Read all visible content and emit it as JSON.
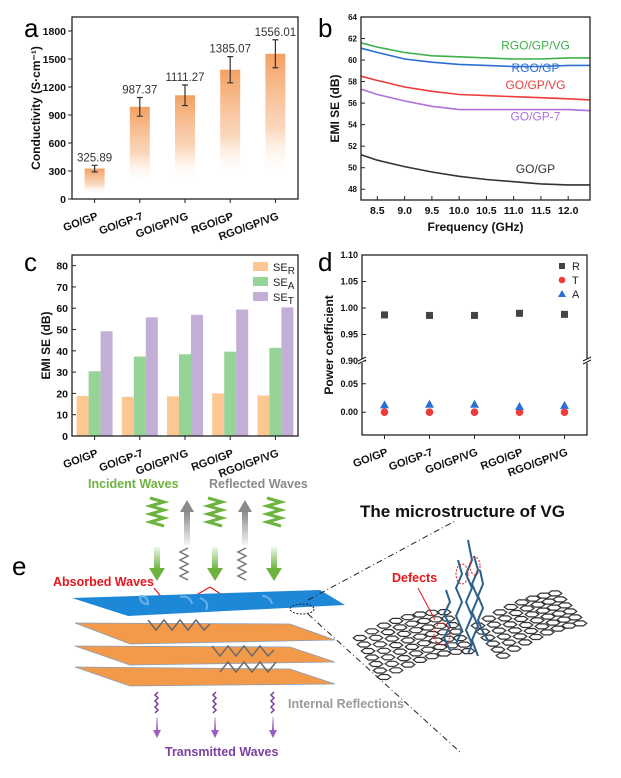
{
  "panels": {
    "a": "a",
    "b": "b",
    "c": "c",
    "d": "d",
    "e": "e"
  },
  "chart_data": [
    {
      "id": "a",
      "type": "bar",
      "title": "",
      "xlabel": "",
      "ylabel": "Conductivity (S·cm⁻¹)",
      "ylim": [
        0,
        1950
      ],
      "yticks": [
        0,
        300,
        600,
        900,
        1200,
        1500,
        1800
      ],
      "categories": [
        "GO/GP",
        "GO/GP-7",
        "GO/GP/VG",
        "RGO/GP",
        "RGO/GP/VG"
      ],
      "values": [
        325.89,
        987.37,
        1111.27,
        1385.07,
        1556.01
      ],
      "errors": [
        35,
        100,
        110,
        140,
        150
      ],
      "data_labels": [
        "325.89",
        "987.37",
        "1111.27",
        "1385.07",
        "1556.01"
      ],
      "color": "#f4a060",
      "grid": false
    },
    {
      "id": "b",
      "type": "line",
      "xlabel": "Frequency (GHz)",
      "ylabel": "EMI SE (dB)",
      "xlim": [
        8.2,
        12.4
      ],
      "ylim": [
        47,
        64
      ],
      "xticks": [
        8.5,
        9.0,
        9.5,
        10.0,
        10.5,
        11.0,
        11.5,
        12.0
      ],
      "xtick_labels": [
        "8.5",
        "9.0",
        "9.5",
        "10.0",
        "10.5",
        "11.0",
        "11.5",
        "12.0"
      ],
      "yticks": [
        48,
        50,
        52,
        54,
        56,
        58,
        60,
        62,
        64
      ],
      "x": [
        8.2,
        8.5,
        9.0,
        9.5,
        10.0,
        10.5,
        11.0,
        11.5,
        12.0,
        12.4
      ],
      "series": [
        {
          "name": "RGO/GP/VG",
          "color": "#3cb04a",
          "values": [
            61.6,
            61.2,
            60.7,
            60.4,
            60.3,
            60.2,
            60.1,
            60.1,
            60.2,
            60.2
          ]
        },
        {
          "name": "RGO/GP",
          "color": "#2a6fd6",
          "values": [
            61.1,
            60.7,
            60.1,
            59.8,
            59.6,
            59.5,
            59.4,
            59.4,
            59.5,
            59.5
          ]
        },
        {
          "name": "GO/GP/VG",
          "color": "#ee3b3b",
          "values": [
            58.5,
            58.1,
            57.5,
            57.1,
            56.8,
            56.7,
            56.6,
            56.5,
            56.4,
            56.3
          ]
        },
        {
          "name": "GO/GP-7",
          "color": "#b070e0",
          "values": [
            57.3,
            56.8,
            56.2,
            55.7,
            55.4,
            55.4,
            55.4,
            55.4,
            55.4,
            55.3
          ]
        },
        {
          "name": "GO/GP",
          "color": "#333333",
          "values": [
            51.2,
            50.7,
            50.1,
            49.6,
            49.2,
            48.9,
            48.7,
            48.5,
            48.4,
            48.4
          ]
        }
      ],
      "grid": false
    },
    {
      "id": "c",
      "type": "bar",
      "xlabel": "",
      "ylabel": "EMI SE (dB)",
      "ylim": [
        0,
        85
      ],
      "yticks": [
        0,
        10,
        20,
        30,
        40,
        50,
        60,
        70,
        80
      ],
      "categories": [
        "GO/GP",
        "GO/GP-7",
        "GO/GP/VG",
        "RGO/GP",
        "RGO/GP/VG"
      ],
      "series": [
        {
          "name": "SE",
          "sub": "R",
          "color": "#fcc790",
          "values": [
            18.8,
            18.4,
            18.6,
            20.0,
            19.0
          ]
        },
        {
          "name": "SE",
          "sub": "A",
          "color": "#95d496",
          "values": [
            30.4,
            37.3,
            38.4,
            39.6,
            41.4
          ]
        },
        {
          "name": "SE",
          "sub": "T",
          "color": "#c3afd6",
          "values": [
            49.2,
            55.7,
            56.9,
            59.4,
            60.4
          ]
        }
      ],
      "legend": "top-right",
      "grid": false
    },
    {
      "id": "d",
      "type": "scatter",
      "xlabel": "",
      "ylabel": "Power coefficient",
      "axis_break": [
        0.09,
        0.9
      ],
      "ylim_lower": [
        -0.04,
        0.09
      ],
      "ylim_upper": [
        0.9,
        1.1
      ],
      "yticks": [
        "0.00",
        "0.05",
        "0.90",
        "0.95",
        "1.00",
        "1.05",
        "1.10"
      ],
      "categories": [
        "GO/GP",
        "GO/GP-7",
        "GO/GP/VG",
        "RGO/GP",
        "RGO/GP/VG"
      ],
      "series": [
        {
          "name": "R",
          "marker": "square",
          "color": "#444444",
          "values": [
            0.987,
            0.986,
            0.986,
            0.99,
            0.988
          ]
        },
        {
          "name": "T",
          "marker": "circle",
          "color": "#ee3b3b",
          "values": [
            0.0,
            0.0,
            0.0,
            0.0,
            0.0
          ]
        },
        {
          "name": "A",
          "marker": "triangle",
          "color": "#2a6fd6",
          "values": [
            0.013,
            0.014,
            0.014,
            0.01,
            0.012
          ]
        }
      ],
      "legend": "top-right",
      "grid": false
    }
  ],
  "schematic": {
    "incident": "Incident Waves",
    "reflected": "Reflected Waves",
    "absorbed": "Absorbed Waves",
    "internal": "Internal Reflections",
    "transmitted": "Transmitted Waves",
    "micro_title": "The microstructure of VG",
    "defects": "Defects",
    "colors": {
      "incident": "#6cb33f",
      "reflected": "#8a8a8a",
      "absorbed": "#e8141b",
      "transmitted": "#7b3fa0",
      "top_layer": "#1e88d8",
      "layers": "#f39a4a"
    }
  }
}
